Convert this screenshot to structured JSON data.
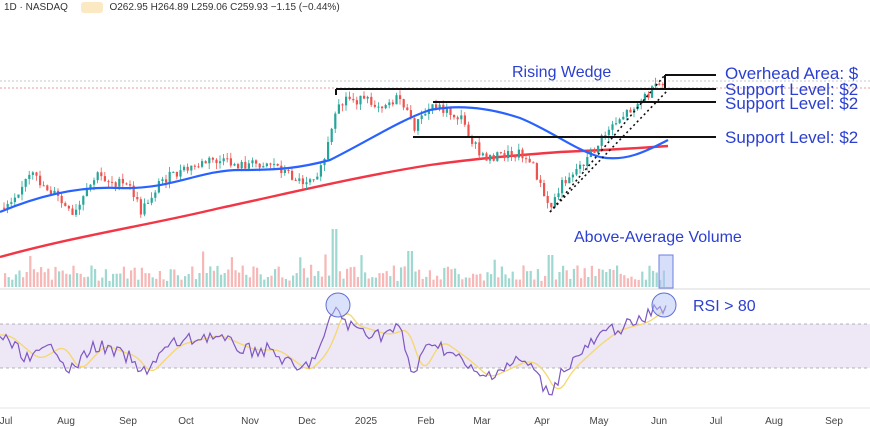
{
  "header": {
    "symbol": "1D · NASDAQ",
    "ohlc": "O262.95 H264.89 L259.06 C259.93 −1.15 (−0.44%)"
  },
  "colors": {
    "up": "#26a69a",
    "down": "#ef5350",
    "sma50": "#2962ff",
    "sma200": "#f23645",
    "rsi": "#7e57c2",
    "rsi_ma": "#f5d76e",
    "annotation": "#2b3fd0",
    "rsi_band": "#ede7f6"
  },
  "annotations": {
    "wedge": "Rising Wedge",
    "overhead": "Overhead Area: $",
    "support1": "Support Level: $2",
    "support2": "Support Level: $2",
    "support3": "Support Level: $2",
    "volume": "Above-Average Volume",
    "rsi": "RSI > 80"
  },
  "chart_data": {
    "type": "candlestick",
    "x_axis_labels": [
      "Jul",
      "Aug",
      "Sep",
      "Oct",
      "Nov",
      "Dec",
      "2025",
      "Feb",
      "Mar",
      "Apr",
      "May",
      "Jun",
      "Jul",
      "Aug",
      "Sep"
    ],
    "indicators": [
      "50-day moving average",
      "200-day moving average",
      "RSI",
      "RSI moving average"
    ],
    "rsi_bands": [
      30,
      70
    ]
  }
}
